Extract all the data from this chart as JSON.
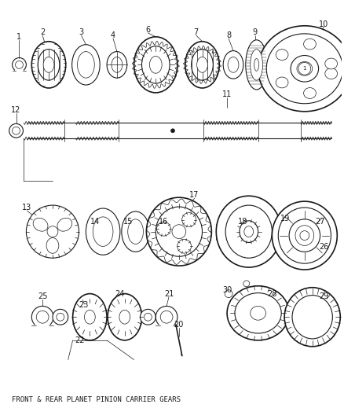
{
  "title": "FRONT & REAR PLANET PINION CARRIER GEARS",
  "bg_color": "#ffffff",
  "line_color": "#1a1a1a",
  "text_color": "#1a1a1a",
  "title_fontsize": 6.5,
  "label_fontsize": 7.0,
  "fig_width": 4.38,
  "fig_height": 5.33,
  "dpi": 100
}
